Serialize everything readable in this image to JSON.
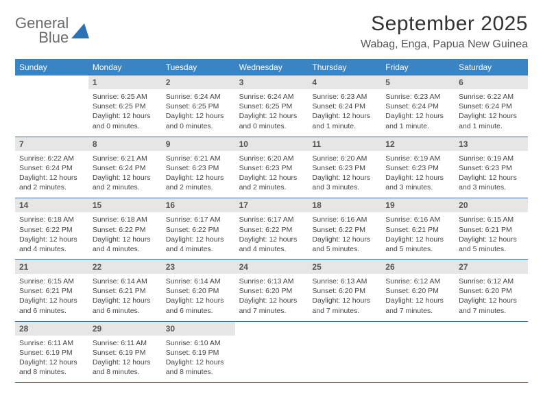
{
  "logo": {
    "word1": "General",
    "word2": "Blue"
  },
  "title": "September 2025",
  "location": "Wabag, Enga, Papua New Guinea",
  "colors": {
    "header_bg": "#3b84c4",
    "header_text": "#ffffff",
    "date_bg": "#e6e6e6",
    "week_border": "#3b6ea0",
    "body_text": "#444444",
    "title_text": "#333333",
    "logo_gray": "#6a6a6a",
    "logo_blue": "#2a72b5"
  },
  "day_names": [
    "Sunday",
    "Monday",
    "Tuesday",
    "Wednesday",
    "Thursday",
    "Friday",
    "Saturday"
  ],
  "weeks": [
    [
      {
        "date": "",
        "sunrise": "",
        "sunset": "",
        "daylight": ""
      },
      {
        "date": "1",
        "sunrise": "Sunrise: 6:25 AM",
        "sunset": "Sunset: 6:25 PM",
        "daylight": "Daylight: 12 hours and 0 minutes."
      },
      {
        "date": "2",
        "sunrise": "Sunrise: 6:24 AM",
        "sunset": "Sunset: 6:25 PM",
        "daylight": "Daylight: 12 hours and 0 minutes."
      },
      {
        "date": "3",
        "sunrise": "Sunrise: 6:24 AM",
        "sunset": "Sunset: 6:25 PM",
        "daylight": "Daylight: 12 hours and 0 minutes."
      },
      {
        "date": "4",
        "sunrise": "Sunrise: 6:23 AM",
        "sunset": "Sunset: 6:24 PM",
        "daylight": "Daylight: 12 hours and 1 minute."
      },
      {
        "date": "5",
        "sunrise": "Sunrise: 6:23 AM",
        "sunset": "Sunset: 6:24 PM",
        "daylight": "Daylight: 12 hours and 1 minute."
      },
      {
        "date": "6",
        "sunrise": "Sunrise: 6:22 AM",
        "sunset": "Sunset: 6:24 PM",
        "daylight": "Daylight: 12 hours and 1 minute."
      }
    ],
    [
      {
        "date": "7",
        "sunrise": "Sunrise: 6:22 AM",
        "sunset": "Sunset: 6:24 PM",
        "daylight": "Daylight: 12 hours and 2 minutes."
      },
      {
        "date": "8",
        "sunrise": "Sunrise: 6:21 AM",
        "sunset": "Sunset: 6:24 PM",
        "daylight": "Daylight: 12 hours and 2 minutes."
      },
      {
        "date": "9",
        "sunrise": "Sunrise: 6:21 AM",
        "sunset": "Sunset: 6:23 PM",
        "daylight": "Daylight: 12 hours and 2 minutes."
      },
      {
        "date": "10",
        "sunrise": "Sunrise: 6:20 AM",
        "sunset": "Sunset: 6:23 PM",
        "daylight": "Daylight: 12 hours and 2 minutes."
      },
      {
        "date": "11",
        "sunrise": "Sunrise: 6:20 AM",
        "sunset": "Sunset: 6:23 PM",
        "daylight": "Daylight: 12 hours and 3 minutes."
      },
      {
        "date": "12",
        "sunrise": "Sunrise: 6:19 AM",
        "sunset": "Sunset: 6:23 PM",
        "daylight": "Daylight: 12 hours and 3 minutes."
      },
      {
        "date": "13",
        "sunrise": "Sunrise: 6:19 AM",
        "sunset": "Sunset: 6:23 PM",
        "daylight": "Daylight: 12 hours and 3 minutes."
      }
    ],
    [
      {
        "date": "14",
        "sunrise": "Sunrise: 6:18 AM",
        "sunset": "Sunset: 6:22 PM",
        "daylight": "Daylight: 12 hours and 4 minutes."
      },
      {
        "date": "15",
        "sunrise": "Sunrise: 6:18 AM",
        "sunset": "Sunset: 6:22 PM",
        "daylight": "Daylight: 12 hours and 4 minutes."
      },
      {
        "date": "16",
        "sunrise": "Sunrise: 6:17 AM",
        "sunset": "Sunset: 6:22 PM",
        "daylight": "Daylight: 12 hours and 4 minutes."
      },
      {
        "date": "17",
        "sunrise": "Sunrise: 6:17 AM",
        "sunset": "Sunset: 6:22 PM",
        "daylight": "Daylight: 12 hours and 4 minutes."
      },
      {
        "date": "18",
        "sunrise": "Sunrise: 6:16 AM",
        "sunset": "Sunset: 6:22 PM",
        "daylight": "Daylight: 12 hours and 5 minutes."
      },
      {
        "date": "19",
        "sunrise": "Sunrise: 6:16 AM",
        "sunset": "Sunset: 6:21 PM",
        "daylight": "Daylight: 12 hours and 5 minutes."
      },
      {
        "date": "20",
        "sunrise": "Sunrise: 6:15 AM",
        "sunset": "Sunset: 6:21 PM",
        "daylight": "Daylight: 12 hours and 5 minutes."
      }
    ],
    [
      {
        "date": "21",
        "sunrise": "Sunrise: 6:15 AM",
        "sunset": "Sunset: 6:21 PM",
        "daylight": "Daylight: 12 hours and 6 minutes."
      },
      {
        "date": "22",
        "sunrise": "Sunrise: 6:14 AM",
        "sunset": "Sunset: 6:21 PM",
        "daylight": "Daylight: 12 hours and 6 minutes."
      },
      {
        "date": "23",
        "sunrise": "Sunrise: 6:14 AM",
        "sunset": "Sunset: 6:20 PM",
        "daylight": "Daylight: 12 hours and 6 minutes."
      },
      {
        "date": "24",
        "sunrise": "Sunrise: 6:13 AM",
        "sunset": "Sunset: 6:20 PM",
        "daylight": "Daylight: 12 hours and 7 minutes."
      },
      {
        "date": "25",
        "sunrise": "Sunrise: 6:13 AM",
        "sunset": "Sunset: 6:20 PM",
        "daylight": "Daylight: 12 hours and 7 minutes."
      },
      {
        "date": "26",
        "sunrise": "Sunrise: 6:12 AM",
        "sunset": "Sunset: 6:20 PM",
        "daylight": "Daylight: 12 hours and 7 minutes."
      },
      {
        "date": "27",
        "sunrise": "Sunrise: 6:12 AM",
        "sunset": "Sunset: 6:20 PM",
        "daylight": "Daylight: 12 hours and 7 minutes."
      }
    ],
    [
      {
        "date": "28",
        "sunrise": "Sunrise: 6:11 AM",
        "sunset": "Sunset: 6:19 PM",
        "daylight": "Daylight: 12 hours and 8 minutes."
      },
      {
        "date": "29",
        "sunrise": "Sunrise: 6:11 AM",
        "sunset": "Sunset: 6:19 PM",
        "daylight": "Daylight: 12 hours and 8 minutes."
      },
      {
        "date": "30",
        "sunrise": "Sunrise: 6:10 AM",
        "sunset": "Sunset: 6:19 PM",
        "daylight": "Daylight: 12 hours and 8 minutes."
      },
      {
        "date": "",
        "sunrise": "",
        "sunset": "",
        "daylight": ""
      },
      {
        "date": "",
        "sunrise": "",
        "sunset": "",
        "daylight": ""
      },
      {
        "date": "",
        "sunrise": "",
        "sunset": "",
        "daylight": ""
      },
      {
        "date": "",
        "sunrise": "",
        "sunset": "",
        "daylight": ""
      }
    ]
  ]
}
